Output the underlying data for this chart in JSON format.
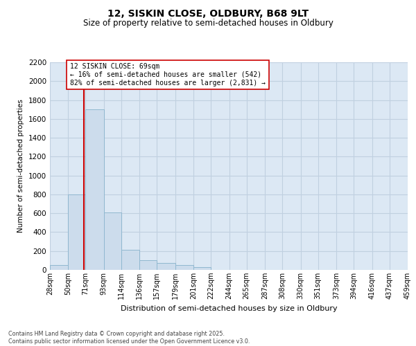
{
  "title_line1": "12, SISKIN CLOSE, OLDBURY, B68 9LT",
  "title_line2": "Size of property relative to semi-detached houses in Oldbury",
  "xlabel": "Distribution of semi-detached houses by size in Oldbury",
  "ylabel": "Number of semi-detached properties",
  "bins": [
    "28sqm",
    "50sqm",
    "71sqm",
    "93sqm",
    "114sqm",
    "136sqm",
    "157sqm",
    "179sqm",
    "201sqm",
    "222sqm",
    "244sqm",
    "265sqm",
    "287sqm",
    "308sqm",
    "330sqm",
    "351sqm",
    "373sqm",
    "394sqm",
    "416sqm",
    "437sqm",
    "459sqm"
  ],
  "bin_edges": [
    28,
    50,
    71,
    93,
    114,
    136,
    157,
    179,
    201,
    222,
    244,
    265,
    287,
    308,
    330,
    351,
    373,
    394,
    416,
    437,
    459
  ],
  "values": [
    55,
    800,
    1700,
    610,
    215,
    105,
    75,
    50,
    30,
    0,
    0,
    0,
    0,
    0,
    0,
    0,
    0,
    0,
    0,
    0
  ],
  "bar_color": "#ccdcec",
  "bar_edge_color": "#90b8d0",
  "grid_color": "#c0d0e0",
  "property_size": 69,
  "property_line_color": "#cc0000",
  "annotation_text": "12 SISKIN CLOSE: 69sqm\n← 16% of semi-detached houses are smaller (542)\n82% of semi-detached houses are larger (2,831) →",
  "annotation_box_color": "#ffffff",
  "annotation_box_edge": "#cc0000",
  "ylim": [
    0,
    2200
  ],
  "yticks": [
    0,
    200,
    400,
    600,
    800,
    1000,
    1200,
    1400,
    1600,
    1800,
    2000,
    2200
  ],
  "footnote": "Contains HM Land Registry data © Crown copyright and database right 2025.\nContains public sector information licensed under the Open Government Licence v3.0.",
  "plot_bg_color": "#dce8f4",
  "fig_bg_color": "#ffffff"
}
